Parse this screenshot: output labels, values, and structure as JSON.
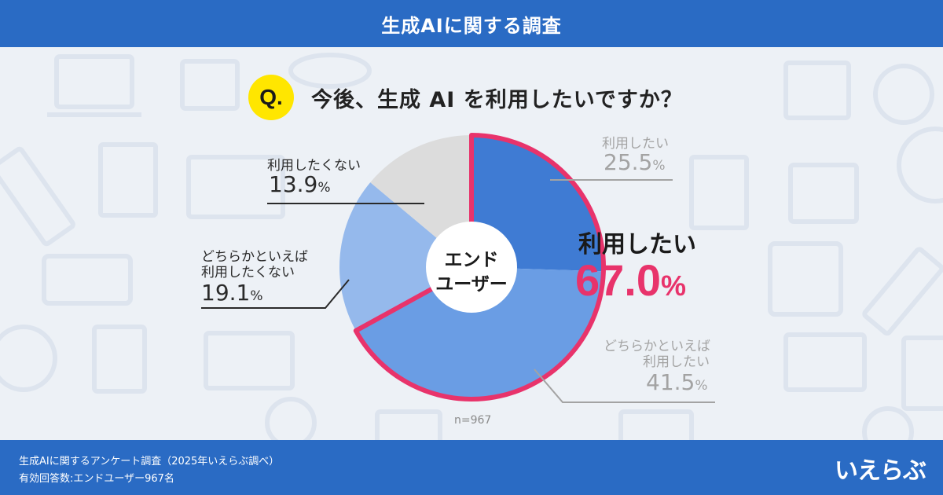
{
  "header": {
    "title": "生成AIに関する調査"
  },
  "question": {
    "badge": "Q.",
    "text": "今後、生成 AI を利用したいですか？"
  },
  "chart_data": {
    "type": "pie",
    "center_label": [
      "エンド",
      "ユーザー"
    ],
    "n": "n=967",
    "slices": [
      {
        "label": "利用したい",
        "value": 25.5,
        "color": "#3f7bd3"
      },
      {
        "label": "どちらかといえば利用したい",
        "value": 41.5,
        "color": "#6a9de4"
      },
      {
        "label": "どちらかといえば利用したくない",
        "value": 19.1,
        "color": "#95b9ec"
      },
      {
        "label": "利用したくない",
        "value": 13.9,
        "color": "#dcdcdc"
      }
    ],
    "highlight": {
      "label": "利用したい",
      "value": "67.0",
      "unit": "%",
      "color": "#e8336b"
    }
  },
  "labels": {
    "s1_name": "利用したい",
    "s1_value": "25.5",
    "s1_unit": "%",
    "s2_name1": "どちらかといえば",
    "s2_name2": "利用したい",
    "s2_value": "41.5",
    "s2_unit": "%",
    "s3_name1": "どちらかといえば",
    "s3_name2": "利用したくない",
    "s3_value": "19.1",
    "s3_unit": "%",
    "s4_name": "利用したくない",
    "s4_value": "13.9",
    "s4_unit": "%"
  },
  "footer": {
    "line1": "生成AIに関するアンケート調査（2025年いえらぶ調べ）",
    "line2": "有効回答数:エンドユーザー967名",
    "logo": "いえらぶ"
  }
}
